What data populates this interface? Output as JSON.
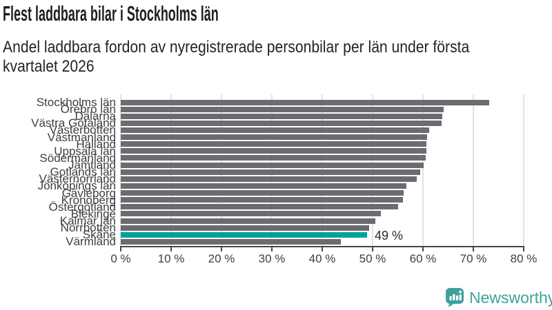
{
  "header": {
    "title": "Flest laddbara bilar i Stockholms län",
    "subtitle_lines": [
      "Andel laddbara fordon av nyregistrerade personbilar per län under första",
      "kvartalet 2026"
    ]
  },
  "chart_data": {
    "type": "bar",
    "orientation": "horizontal",
    "title": "Flest laddbara bilar i Stockholms län",
    "subtitle": "Andel laddbara fordon av nyregistrerade personbilar per län under första kvartalet 2026",
    "unit": "%",
    "xlim": [
      0,
      80
    ],
    "grid": true,
    "x_tick_labels": [
      "0 %",
      "10 %",
      "20 %",
      "30 %",
      "40 %",
      "50 %",
      "60 %",
      "70 %",
      "80 %"
    ],
    "x_tick_values": [
      0,
      10,
      20,
      30,
      40,
      50,
      60,
      70,
      80
    ],
    "categories": [
      "Stockholms län",
      "Örebro län",
      "Dalarna",
      "Västra Götaland",
      "Västerbotten",
      "Västmanland",
      "Halland",
      "Uppsala län",
      "Södermanland",
      "Jämtland",
      "Gotlands län",
      "Västernorrland",
      "Jönköpings län",
      "Gävleborg",
      "Kronoberg",
      "Östergötland",
      "Blekinge",
      "Kalmar län",
      "Norrbotten",
      "Skåne",
      "Värmland"
    ],
    "values": [
      73.2,
      64.1,
      63.9,
      63.7,
      61.2,
      60.8,
      60.7,
      60.7,
      60.6,
      60.2,
      59.5,
      58.8,
      56.7,
      56.1,
      56.0,
      55.0,
      51.6,
      50.5,
      49.3,
      48.9,
      43.7
    ],
    "highlight": {
      "category": "Skåne",
      "index": 19,
      "annotation": "49 %",
      "color": "#00a29b"
    },
    "colors": {
      "bar": "#6b6b72",
      "highlight_bar": "#00a29b",
      "gridline": "#e3e3e3",
      "axis": "#454545",
      "labels": "#3e3e3e"
    }
  },
  "footer": {
    "brand": "Newsworthy",
    "logo_icon": "bar-chart-speech-bubble-icon",
    "brand_color": "#3fa19c"
  }
}
